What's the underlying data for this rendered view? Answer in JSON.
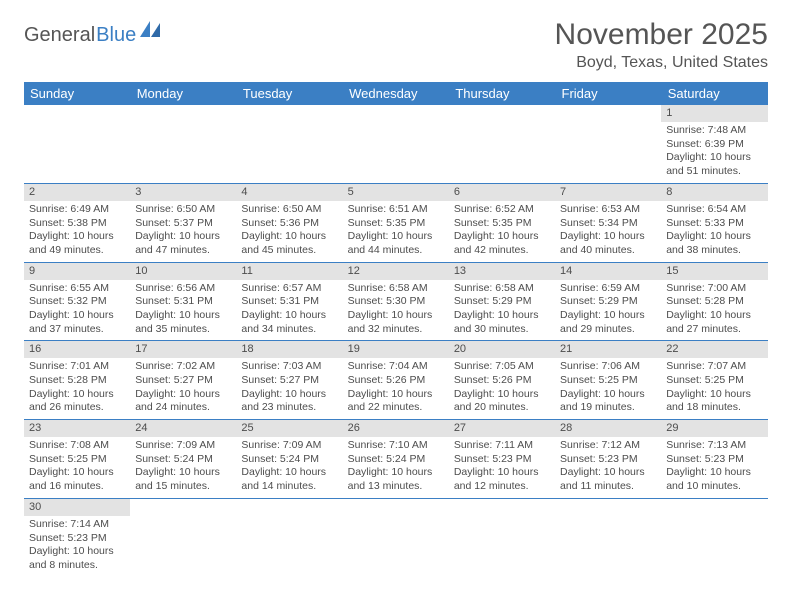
{
  "brand": {
    "part1": "General",
    "part2": "Blue"
  },
  "title": "November 2025",
  "location": "Boyd, Texas, United States",
  "colors": {
    "header_bg": "#3b7fc4",
    "header_text": "#ffffff",
    "daynum_bg": "#e3e3e3",
    "text": "#4d4d4d",
    "cell_border": "#3b7fc4",
    "page_bg": "#ffffff"
  },
  "day_headers": [
    "Sunday",
    "Monday",
    "Tuesday",
    "Wednesday",
    "Thursday",
    "Friday",
    "Saturday"
  ],
  "weeks": [
    [
      null,
      null,
      null,
      null,
      null,
      null,
      {
        "n": "1",
        "sr": "7:48 AM",
        "ss": "6:39 PM",
        "dl": "10 hours and 51 minutes."
      }
    ],
    [
      {
        "n": "2",
        "sr": "6:49 AM",
        "ss": "5:38 PM",
        "dl": "10 hours and 49 minutes."
      },
      {
        "n": "3",
        "sr": "6:50 AM",
        "ss": "5:37 PM",
        "dl": "10 hours and 47 minutes."
      },
      {
        "n": "4",
        "sr": "6:50 AM",
        "ss": "5:36 PM",
        "dl": "10 hours and 45 minutes."
      },
      {
        "n": "5",
        "sr": "6:51 AM",
        "ss": "5:35 PM",
        "dl": "10 hours and 44 minutes."
      },
      {
        "n": "6",
        "sr": "6:52 AM",
        "ss": "5:35 PM",
        "dl": "10 hours and 42 minutes."
      },
      {
        "n": "7",
        "sr": "6:53 AM",
        "ss": "5:34 PM",
        "dl": "10 hours and 40 minutes."
      },
      {
        "n": "8",
        "sr": "6:54 AM",
        "ss": "5:33 PM",
        "dl": "10 hours and 38 minutes."
      }
    ],
    [
      {
        "n": "9",
        "sr": "6:55 AM",
        "ss": "5:32 PM",
        "dl": "10 hours and 37 minutes."
      },
      {
        "n": "10",
        "sr": "6:56 AM",
        "ss": "5:31 PM",
        "dl": "10 hours and 35 minutes."
      },
      {
        "n": "11",
        "sr": "6:57 AM",
        "ss": "5:31 PM",
        "dl": "10 hours and 34 minutes."
      },
      {
        "n": "12",
        "sr": "6:58 AM",
        "ss": "5:30 PM",
        "dl": "10 hours and 32 minutes."
      },
      {
        "n": "13",
        "sr": "6:58 AM",
        "ss": "5:29 PM",
        "dl": "10 hours and 30 minutes."
      },
      {
        "n": "14",
        "sr": "6:59 AM",
        "ss": "5:29 PM",
        "dl": "10 hours and 29 minutes."
      },
      {
        "n": "15",
        "sr": "7:00 AM",
        "ss": "5:28 PM",
        "dl": "10 hours and 27 minutes."
      }
    ],
    [
      {
        "n": "16",
        "sr": "7:01 AM",
        "ss": "5:28 PM",
        "dl": "10 hours and 26 minutes."
      },
      {
        "n": "17",
        "sr": "7:02 AM",
        "ss": "5:27 PM",
        "dl": "10 hours and 24 minutes."
      },
      {
        "n": "18",
        "sr": "7:03 AM",
        "ss": "5:27 PM",
        "dl": "10 hours and 23 minutes."
      },
      {
        "n": "19",
        "sr": "7:04 AM",
        "ss": "5:26 PM",
        "dl": "10 hours and 22 minutes."
      },
      {
        "n": "20",
        "sr": "7:05 AM",
        "ss": "5:26 PM",
        "dl": "10 hours and 20 minutes."
      },
      {
        "n": "21",
        "sr": "7:06 AM",
        "ss": "5:25 PM",
        "dl": "10 hours and 19 minutes."
      },
      {
        "n": "22",
        "sr": "7:07 AM",
        "ss": "5:25 PM",
        "dl": "10 hours and 18 minutes."
      }
    ],
    [
      {
        "n": "23",
        "sr": "7:08 AM",
        "ss": "5:25 PM",
        "dl": "10 hours and 16 minutes."
      },
      {
        "n": "24",
        "sr": "7:09 AM",
        "ss": "5:24 PM",
        "dl": "10 hours and 15 minutes."
      },
      {
        "n": "25",
        "sr": "7:09 AM",
        "ss": "5:24 PM",
        "dl": "10 hours and 14 minutes."
      },
      {
        "n": "26",
        "sr": "7:10 AM",
        "ss": "5:24 PM",
        "dl": "10 hours and 13 minutes."
      },
      {
        "n": "27",
        "sr": "7:11 AM",
        "ss": "5:23 PM",
        "dl": "10 hours and 12 minutes."
      },
      {
        "n": "28",
        "sr": "7:12 AM",
        "ss": "5:23 PM",
        "dl": "10 hours and 11 minutes."
      },
      {
        "n": "29",
        "sr": "7:13 AM",
        "ss": "5:23 PM",
        "dl": "10 hours and 10 minutes."
      }
    ],
    [
      {
        "n": "30",
        "sr": "7:14 AM",
        "ss": "5:23 PM",
        "dl": "10 hours and 8 minutes."
      },
      null,
      null,
      null,
      null,
      null,
      null
    ]
  ],
  "labels": {
    "sunrise": "Sunrise:",
    "sunset": "Sunset:",
    "daylight": "Daylight:"
  }
}
